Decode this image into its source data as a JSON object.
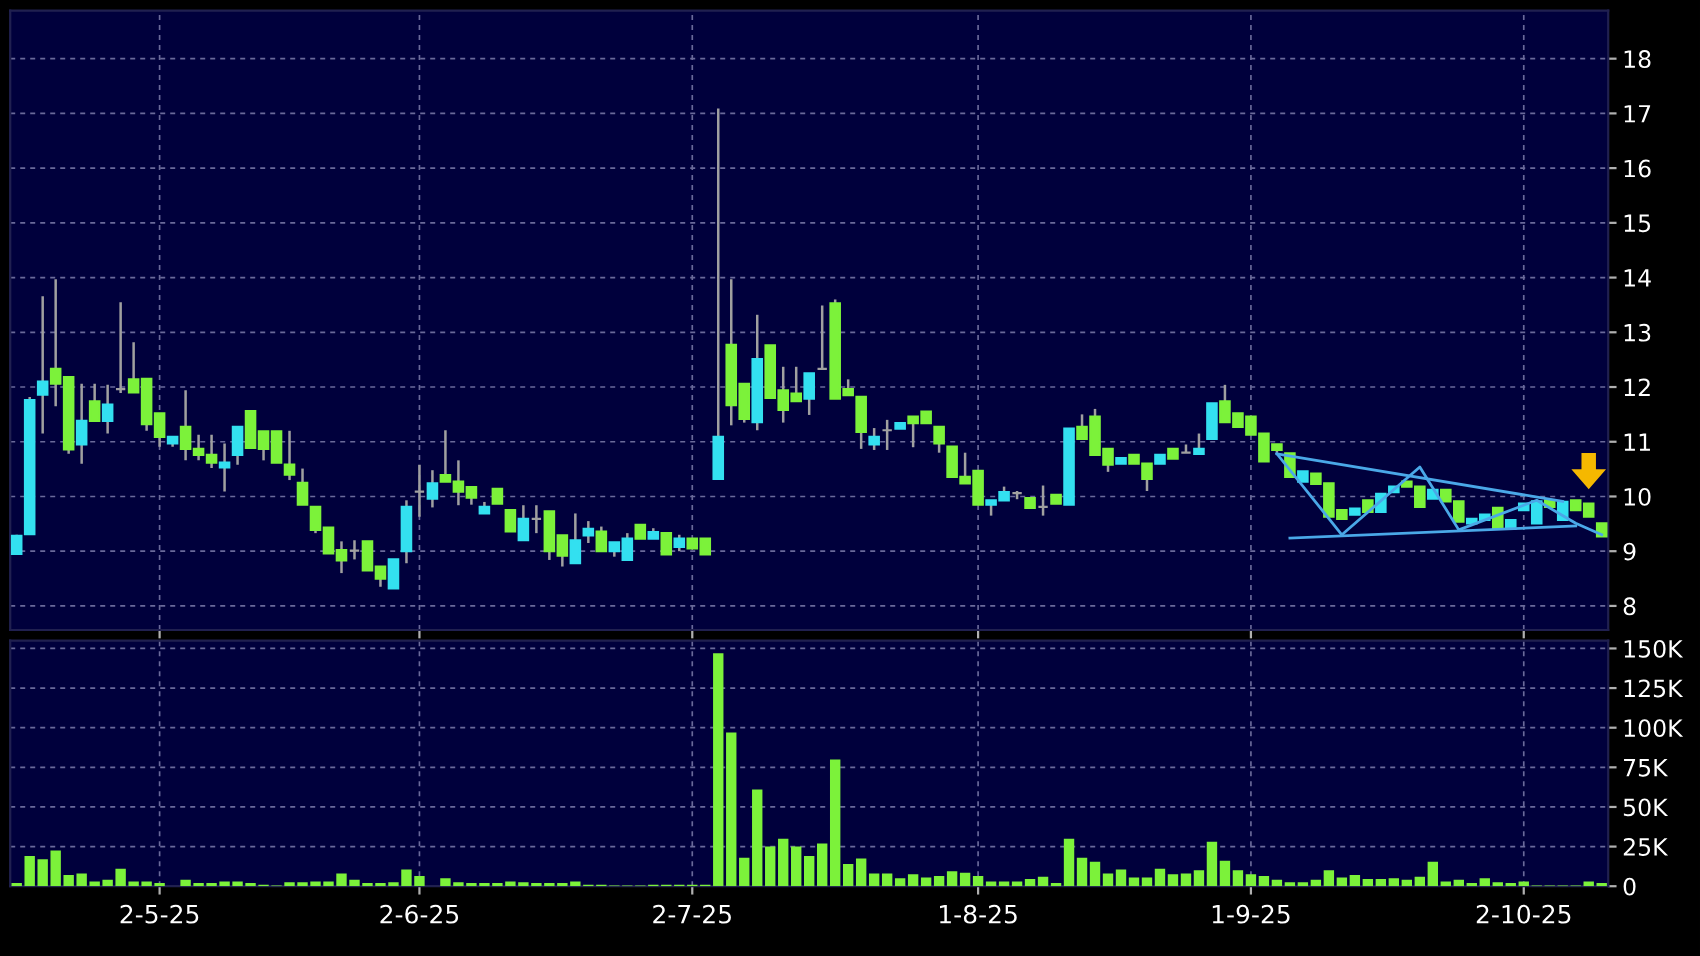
{
  "chart_data": [
    {
      "type": "candlestick",
      "tick_labels": "y",
      "grid": true,
      "categories": [
        null,
        null,
        null,
        null,
        null,
        null,
        null,
        null,
        null,
        null,
        null,
        null,
        null,
        null,
        null,
        null,
        null,
        null,
        null,
        null,
        null,
        null,
        null,
        null,
        null,
        null,
        null,
        null,
        null,
        null,
        null,
        null,
        null,
        null,
        null,
        null,
        null,
        null,
        null,
        null,
        null,
        null,
        null,
        null,
        null,
        null,
        null,
        null,
        null,
        null,
        null,
        null,
        null,
        null,
        null,
        null,
        null,
        null,
        null,
        null,
        null,
        null,
        null,
        null,
        null,
        null,
        null,
        null,
        null,
        null,
        null,
        null,
        null,
        null,
        null,
        null,
        null,
        null,
        null,
        null,
        null,
        null,
        null,
        null,
        null,
        null,
        null,
        null,
        null,
        null,
        null,
        null,
        null,
        null,
        null,
        null,
        null,
        null,
        null,
        null,
        null,
        null,
        null,
        null,
        null,
        null,
        null,
        null,
        null,
        null,
        null,
        null,
        null,
        null,
        null,
        null,
        null,
        null,
        null,
        null,
        null,
        null,
        null
      ],
      "ohlc": [
        [
          8.95,
          9.3,
          8.95,
          9.28
        ],
        [
          9.31,
          11.82,
          9.31,
          11.76
        ],
        [
          11.86,
          13.66,
          11.15,
          12.1
        ],
        [
          12.33,
          13.97,
          11.65,
          12.06
        ],
        [
          12.18,
          12.2,
          10.78,
          10.86
        ],
        [
          10.95,
          12.06,
          10.6,
          11.38
        ],
        [
          11.74,
          12.06,
          11.38,
          11.38
        ],
        [
          11.38,
          12.04,
          11.15,
          11.68
        ],
        [
          11.96,
          13.55,
          11.89,
          11.96
        ],
        [
          12.14,
          12.82,
          11.9,
          11.9
        ],
        [
          12.15,
          12.15,
          11.2,
          11.32
        ],
        [
          11.52,
          11.52,
          10.91,
          11.09
        ],
        [
          10.97,
          11.09,
          10.91,
          11.09
        ],
        [
          11.27,
          11.94,
          10.66,
          10.87
        ],
        [
          10.87,
          11.13,
          10.66,
          10.76
        ],
        [
          10.76,
          11.13,
          10.52,
          10.62
        ],
        [
          10.53,
          10.97,
          10.09,
          10.62
        ],
        [
          10.76,
          11.27,
          10.58,
          11.27
        ],
        [
          11.56,
          11.56,
          10.89,
          10.89
        ],
        [
          11.19,
          11.19,
          10.66,
          10.87
        ],
        [
          11.19,
          11.19,
          10.62,
          10.62
        ],
        [
          10.58,
          11.2,
          10.3,
          10.4
        ],
        [
          10.25,
          10.51,
          9.85,
          9.85
        ],
        [
          9.81,
          9.81,
          9.33,
          9.39
        ],
        [
          9.43,
          9.43,
          8.96,
          8.96
        ],
        [
          9.02,
          9.18,
          8.6,
          8.83
        ],
        [
          9.01,
          9.2,
          8.85,
          9.01
        ],
        [
          9.18,
          9.18,
          8.65,
          8.65
        ],
        [
          8.72,
          8.72,
          8.35,
          8.5
        ],
        [
          8.32,
          8.85,
          8.32,
          8.85
        ],
        [
          9.0,
          9.93,
          8.78,
          9.81
        ],
        [
          10.09,
          10.58,
          9.63,
          10.09
        ],
        [
          9.96,
          10.48,
          9.8,
          10.24
        ],
        [
          10.39,
          11.21,
          10.27,
          10.27
        ],
        [
          10.27,
          10.66,
          9.84,
          10.09
        ],
        [
          10.17,
          10.17,
          9.85,
          9.98
        ],
        [
          9.69,
          9.9,
          9.69,
          9.81
        ],
        [
          10.14,
          10.14,
          9.87,
          9.87
        ],
        [
          9.75,
          9.75,
          9.36,
          9.36
        ],
        [
          9.2,
          9.84,
          9.2,
          9.59
        ],
        [
          9.59,
          9.84,
          9.33,
          9.59
        ],
        [
          9.73,
          9.73,
          8.84,
          9.0
        ],
        [
          9.29,
          9.29,
          8.72,
          8.92
        ],
        [
          8.78,
          9.69,
          8.78,
          9.2
        ],
        [
          9.29,
          9.55,
          9.15,
          9.41
        ],
        [
          9.36,
          9.45,
          9.0,
          9.0
        ],
        [
          9.0,
          9.16,
          8.9,
          9.16
        ],
        [
          8.84,
          9.33,
          8.84,
          9.23
        ],
        [
          9.48,
          9.48,
          9.23,
          9.23
        ],
        [
          9.23,
          9.42,
          9.23,
          9.35
        ],
        [
          9.33,
          9.33,
          8.94,
          8.94
        ],
        [
          9.08,
          9.3,
          9.0,
          9.23
        ],
        [
          9.23,
          9.23,
          9.05,
          9.05
        ],
        [
          9.23,
          9.23,
          8.94,
          8.94
        ],
        [
          10.32,
          17.09,
          10.32,
          11.09
        ],
        [
          12.77,
          13.97,
          11.3,
          11.67
        ],
        [
          12.06,
          12.06,
          11.35,
          11.42
        ],
        [
          11.36,
          13.32,
          11.21,
          12.51
        ],
        [
          12.76,
          12.76,
          11.8,
          11.8
        ],
        [
          11.94,
          12.37,
          11.35,
          11.58
        ],
        [
          11.88,
          12.37,
          11.74,
          11.74
        ],
        [
          11.79,
          12.25,
          11.49,
          12.25
        ],
        [
          12.33,
          13.49,
          12.33,
          12.33
        ],
        [
          13.53,
          13.6,
          11.79,
          11.79
        ],
        [
          11.96,
          12.14,
          11.85,
          11.85
        ],
        [
          11.82,
          11.82,
          10.87,
          11.18
        ],
        [
          10.95,
          11.25,
          10.85,
          11.09
        ],
        [
          11.21,
          11.4,
          10.85,
          11.21
        ],
        [
          11.24,
          11.34,
          11.24,
          11.34
        ],
        [
          11.46,
          11.46,
          10.9,
          11.34
        ],
        [
          11.55,
          11.55,
          11.34,
          11.34
        ],
        [
          11.27,
          11.27,
          10.8,
          10.97
        ],
        [
          10.91,
          10.91,
          10.36,
          10.36
        ],
        [
          10.36,
          10.8,
          10.24,
          10.24
        ],
        [
          10.47,
          10.47,
          9.85,
          9.85
        ],
        [
          9.85,
          9.93,
          9.65,
          9.93
        ],
        [
          9.93,
          10.18,
          9.93,
          10.08
        ],
        [
          10.06,
          10.1,
          9.95,
          10.06
        ],
        [
          9.97,
          9.97,
          9.79,
          9.79
        ],
        [
          9.81,
          10.2,
          9.65,
          9.81
        ],
        [
          10.03,
          10.03,
          9.87,
          9.87
        ],
        [
          9.85,
          11.24,
          9.85,
          11.24
        ],
        [
          11.27,
          11.5,
          11.05,
          11.05
        ],
        [
          11.46,
          11.6,
          10.76,
          10.76
        ],
        [
          10.87,
          10.87,
          10.45,
          10.58
        ],
        [
          10.6,
          10.7,
          10.6,
          10.7
        ],
        [
          10.76,
          10.76,
          10.6,
          10.6
        ],
        [
          10.6,
          10.6,
          10.1,
          10.32
        ],
        [
          10.6,
          10.76,
          10.6,
          10.76
        ],
        [
          10.87,
          10.87,
          10.69,
          10.69
        ],
        [
          10.8,
          10.95,
          10.8,
          10.8
        ],
        [
          10.78,
          11.15,
          10.78,
          10.87
        ],
        [
          11.05,
          11.7,
          11.05,
          11.7
        ],
        [
          11.74,
          12.04,
          11.36,
          11.36
        ],
        [
          11.52,
          11.52,
          11.27,
          11.27
        ],
        [
          11.46,
          11.46,
          11.13,
          11.13
        ],
        [
          11.15,
          11.15,
          10.64,
          10.64
        ],
        [
          10.95,
          10.95,
          10.8,
          10.85
        ],
        [
          10.79,
          10.79,
          10.36,
          10.36
        ],
        [
          10.27,
          10.46,
          10.27,
          10.46
        ],
        [
          10.42,
          10.42,
          10.23,
          10.23
        ],
        [
          10.24,
          10.24,
          9.63,
          9.63
        ],
        [
          9.75,
          9.75,
          9.59,
          9.59
        ],
        [
          9.67,
          9.78,
          9.67,
          9.78
        ],
        [
          9.93,
          9.93,
          9.72,
          9.72
        ],
        [
          9.72,
          10.05,
          9.72,
          10.05
        ],
        [
          10.08,
          10.18,
          10.08,
          10.18
        ],
        [
          10.27,
          10.27,
          10.18,
          10.18
        ],
        [
          10.18,
          10.18,
          9.81,
          9.81
        ],
        [
          9.96,
          10.12,
          9.96,
          10.12
        ],
        [
          10.12,
          10.12,
          9.91,
          9.91
        ],
        [
          9.91,
          9.91,
          9.54,
          9.54
        ],
        [
          9.51,
          9.59,
          9.51,
          9.59
        ],
        [
          9.57,
          9.67,
          9.57,
          9.67
        ],
        [
          9.79,
          9.79,
          9.41,
          9.41
        ],
        [
          9.41,
          9.57,
          9.41,
          9.57
        ],
        [
          9.75,
          9.87,
          9.75,
          9.87
        ],
        [
          9.51,
          9.91,
          9.51,
          9.91
        ],
        [
          9.93,
          9.93,
          9.81,
          9.81
        ],
        [
          9.57,
          9.9,
          9.57,
          9.9
        ],
        [
          9.93,
          9.93,
          9.75,
          9.75
        ],
        [
          9.87,
          9.87,
          9.63,
          9.63
        ],
        [
          9.51,
          9.51,
          9.27,
          9.27
        ]
      ],
      "colors": [
        "#33e0f0",
        "#33e0f0",
        "#33e0f0",
        "#7cf23a",
        "#7cf23a",
        "#33e0f0",
        "#7cf23a",
        "#33e0f0",
        "#a0a0a0",
        "#7cf23a",
        "#7cf23a",
        "#7cf23a",
        "#33e0f0",
        "#7cf23a",
        "#7cf23a",
        "#7cf23a",
        "#33e0f0",
        "#33e0f0",
        "#7cf23a",
        "#7cf23a",
        "#7cf23a",
        "#7cf23a",
        "#7cf23a",
        "#7cf23a",
        "#7cf23a",
        "#7cf23a",
        "#a0a0a0",
        "#7cf23a",
        "#7cf23a",
        "#33e0f0",
        "#33e0f0",
        "#a0a0a0",
        "#33e0f0",
        "#7cf23a",
        "#7cf23a",
        "#7cf23a",
        "#33e0f0",
        "#7cf23a",
        "#7cf23a",
        "#33e0f0",
        "#a0a0a0",
        "#7cf23a",
        "#7cf23a",
        "#33e0f0",
        "#33e0f0",
        "#7cf23a",
        "#33e0f0",
        "#33e0f0",
        "#7cf23a",
        "#33e0f0",
        "#7cf23a",
        "#33e0f0",
        "#7cf23a",
        "#7cf23a",
        "#33e0f0",
        "#7cf23a",
        "#7cf23a",
        "#33e0f0",
        "#7cf23a",
        "#7cf23a",
        "#7cf23a",
        "#33e0f0",
        "#a0a0a0",
        "#7cf23a",
        "#7cf23a",
        "#7cf23a",
        "#33e0f0",
        "#a0a0a0",
        "#33e0f0",
        "#7cf23a",
        "#7cf23a",
        "#7cf23a",
        "#7cf23a",
        "#7cf23a",
        "#7cf23a",
        "#33e0f0",
        "#33e0f0",
        "#a0a0a0",
        "#7cf23a",
        "#a0a0a0",
        "#7cf23a",
        "#33e0f0",
        "#7cf23a",
        "#7cf23a",
        "#7cf23a",
        "#33e0f0",
        "#7cf23a",
        "#7cf23a",
        "#33e0f0",
        "#7cf23a",
        "#a0a0a0",
        "#33e0f0",
        "#33e0f0",
        "#7cf23a",
        "#7cf23a",
        "#7cf23a",
        "#7cf23a",
        "#7cf23a",
        "#7cf23a",
        "#33e0f0",
        "#7cf23a",
        "#7cf23a",
        "#7cf23a",
        "#33e0f0",
        "#7cf23a",
        "#33e0f0",
        "#33e0f0",
        "#7cf23a",
        "#7cf23a",
        "#33e0f0",
        "#7cf23a",
        "#7cf23a",
        "#33e0f0",
        "#33e0f0",
        "#7cf23a",
        "#33e0f0",
        "#33e0f0",
        "#33e0f0",
        "#7cf23a",
        "#33e0f0",
        "#7cf23a",
        "#7cf23a",
        "#7cf23a"
      ],
      "series": [
        {
          "type": "line",
          "color": "#4aa8e8",
          "values": [
            null,
            null,
            null,
            null,
            null,
            null,
            null,
            null,
            null,
            null,
            null,
            null,
            null,
            null,
            null,
            null,
            null,
            null,
            null,
            null,
            null,
            null,
            null,
            null,
            null,
            null,
            null,
            null,
            null,
            null,
            null,
            null,
            null,
            null,
            null,
            null,
            null,
            null,
            null,
            null,
            null,
            null,
            null,
            null,
            null,
            null,
            null,
            null,
            null,
            null,
            null,
            null,
            null,
            null,
            null,
            null,
            null,
            null,
            null,
            null,
            null,
            null,
            null,
            null,
            null,
            null,
            null,
            null,
            null,
            null,
            null,
            null,
            null,
            null,
            null,
            null,
            null,
            null,
            null,
            null,
            null,
            null,
            null,
            null,
            null,
            null,
            null,
            null,
            null,
            null,
            null,
            null,
            null,
            null,
            null,
            null,
            null,
            10.78,
            null,
            null,
            null,
            null,
            null,
            null,
            null,
            null,
            null,
            null,
            null,
            null,
            null,
            null,
            null,
            null,
            null,
            null,
            null,
            null,
            null,
            9.91,
            null,
            null,
            null
          ]
        },
        {
          "type": "line",
          "color": "#4aa8e8",
          "values": [
            null,
            null,
            null,
            null,
            null,
            null,
            null,
            null,
            null,
            null,
            null,
            null,
            null,
            null,
            null,
            null,
            null,
            null,
            null,
            null,
            null,
            null,
            null,
            null,
            null,
            null,
            null,
            null,
            null,
            null,
            null,
            null,
            null,
            null,
            null,
            null,
            null,
            null,
            null,
            null,
            null,
            null,
            null,
            null,
            null,
            null,
            null,
            null,
            null,
            null,
            null,
            null,
            null,
            null,
            null,
            null,
            null,
            null,
            null,
            null,
            null,
            null,
            null,
            null,
            null,
            null,
            null,
            null,
            null,
            null,
            null,
            null,
            null,
            null,
            null,
            null,
            null,
            null,
            null,
            null,
            null,
            null,
            null,
            null,
            null,
            null,
            null,
            null,
            null,
            null,
            null,
            null,
            null,
            null,
            null,
            null,
            null,
            null,
            9.24,
            null,
            null,
            null,
            null,
            null,
            null,
            null,
            null,
            null,
            null,
            null,
            null,
            null,
            null,
            null,
            null,
            null,
            null,
            null,
            null,
            null,
            9.46,
            null,
            null
          ]
        },
        {
          "type": "line",
          "color": "#4aa8e8",
          "values": [
            null,
            null,
            null,
            null,
            null,
            null,
            null,
            null,
            null,
            null,
            null,
            null,
            null,
            null,
            null,
            null,
            null,
            null,
            null,
            null,
            null,
            null,
            null,
            null,
            null,
            null,
            null,
            null,
            null,
            null,
            null,
            null,
            null,
            null,
            null,
            null,
            null,
            null,
            null,
            null,
            null,
            null,
            null,
            null,
            null,
            null,
            null,
            null,
            null,
            null,
            null,
            null,
            null,
            null,
            null,
            null,
            null,
            null,
            null,
            null,
            null,
            null,
            null,
            null,
            null,
            null,
            null,
            null,
            null,
            null,
            null,
            null,
            null,
            null,
            null,
            null,
            null,
            null,
            null,
            null,
            null,
            null,
            null,
            null,
            null,
            null,
            null,
            null,
            null,
            null,
            null,
            null,
            null,
            null,
            null,
            null,
            null,
            10.78,
            null,
            null,
            null,
            null,
            9.3,
            null,
            null,
            null,
            null,
            null,
            10.54,
            null,
            null,
            9.39,
            null,
            null,
            null,
            null,
            null,
            9.93,
            null,
            null,
            9.51,
            null,
            9.3
          ]
        }
      ],
      "ylim": [
        7.56,
        18.88
      ],
      "yticks": [
        8,
        9,
        10,
        11,
        12,
        13,
        14,
        15,
        16,
        17,
        18
      ]
    },
    {
      "type": "bar",
      "grid": true,
      "color": "#7cf23a",
      "categories": [
        null,
        null,
        null,
        null,
        null,
        null,
        null,
        null,
        null,
        null,
        null,
        "2-5-25",
        null,
        null,
        null,
        null,
        null,
        null,
        null,
        null,
        null,
        null,
        null,
        null,
        null,
        null,
        null,
        null,
        null,
        null,
        null,
        "2-6-25",
        null,
        null,
        null,
        null,
        null,
        null,
        null,
        null,
        null,
        null,
        null,
        null,
        null,
        null,
        null,
        null,
        null,
        null,
        null,
        null,
        "2-7-25",
        null,
        null,
        null,
        null,
        null,
        null,
        null,
        null,
        null,
        null,
        null,
        null,
        null,
        null,
        null,
        null,
        null,
        null,
        null,
        null,
        null,
        "1-8-25",
        null,
        null,
        null,
        null,
        null,
        null,
        null,
        null,
        null,
        null,
        null,
        null,
        null,
        null,
        null,
        null,
        null,
        null,
        null,
        null,
        "1-9-25",
        null,
        null,
        null,
        null,
        null,
        null,
        null,
        null,
        null,
        null,
        null,
        null,
        null,
        null,
        null,
        null,
        null,
        null,
        null,
        null,
        "2-10-25",
        null,
        null,
        null,
        null,
        null,
        null
      ],
      "values": [
        2000,
        19000,
        17000,
        22500,
        7000,
        8000,
        3000,
        4000,
        11000,
        3000,
        3000,
        2000,
        0,
        4000,
        2000,
        2000,
        3000,
        3000,
        2000,
        1000,
        500,
        2500,
        2500,
        3000,
        3000,
        8000,
        4000,
        2000,
        2000,
        2500,
        10500,
        6500,
        0,
        5000,
        2500,
        2000,
        2000,
        2000,
        3000,
        2500,
        2000,
        2000,
        2000,
        3000,
        1000,
        1000,
        500,
        500,
        500,
        1000,
        1000,
        1000,
        1000,
        1000,
        147000,
        97000,
        18000,
        61000,
        25000,
        30000,
        25000,
        19000,
        27000,
        80000,
        14000,
        17500,
        8000,
        8000,
        5000,
        7500,
        5500,
        6500,
        9500,
        8500,
        6500,
        3000,
        3000,
        3000,
        4500,
        6000,
        2000,
        30000,
        18000,
        15500,
        8000,
        10500,
        5500,
        5500,
        11000,
        7500,
        8000,
        10000,
        28000,
        16000,
        10000,
        7500,
        6500,
        4000,
        2500,
        2500,
        4000,
        10000,
        5500,
        7000,
        4500,
        4500,
        5000,
        4000,
        6000,
        15500,
        3000,
        4000,
        2000,
        5000,
        2500,
        2000,
        3000,
        500,
        500,
        500,
        500,
        3000,
        2000
      ],
      "ylim": [
        0,
        155000
      ],
      "yticks": [
        0,
        {
          "value": 25000,
          "label": "25K"
        },
        {
          "value": 50000,
          "label": "50K"
        },
        {
          "value": 75000,
          "label": "75K"
        },
        {
          "value": 100000,
          "label": "100K"
        },
        {
          "value": 125000,
          "label": "125K"
        },
        {
          "value": 150000,
          "label": "150K"
        }
      ]
    }
  ]
}
